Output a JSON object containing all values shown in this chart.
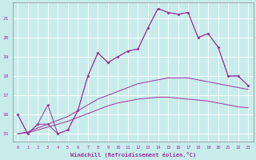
{
  "background_color": "#c8ecec",
  "line_color": "#993399",
  "xlabel": "Windchill (Refroidissement éolien,°C)",
  "xticks": [
    0,
    1,
    2,
    3,
    4,
    5,
    6,
    7,
    8,
    9,
    10,
    11,
    12,
    13,
    14,
    15,
    16,
    17,
    18,
    19,
    20,
    21,
    22,
    23
  ],
  "yticks": [
    15,
    16,
    17,
    18,
    19,
    20,
    21
  ],
  "xlim": [
    -0.5,
    23.5
  ],
  "ylim": [
    14.6,
    21.8
  ],
  "x": [
    0,
    1,
    2,
    3,
    4,
    5,
    6,
    7,
    8,
    9,
    10,
    11,
    12,
    13,
    14,
    15,
    16,
    17,
    18,
    19,
    20,
    21,
    22,
    23
  ],
  "y_spike1": [
    16.0,
    15.0,
    15.5,
    15.5,
    15.0,
    15.2,
    16.2,
    18.0,
    19.2,
    18.7,
    19.0,
    19.3,
    19.4,
    20.5,
    21.5,
    21.3,
    21.2,
    21.3,
    20.0,
    20.2,
    19.5,
    18.0,
    18.0,
    17.5
  ],
  "y_spike2": [
    16.0,
    15.0,
    15.5,
    16.5,
    15.0,
    15.2,
    16.2,
    18.0,
    19.2,
    18.7,
    19.0,
    19.3,
    19.4,
    20.5,
    21.5,
    21.3,
    21.2,
    21.3,
    20.0,
    20.2,
    19.5,
    18.0,
    18.0,
    17.5
  ],
  "y_smooth_upper": [
    15.0,
    15.1,
    15.3,
    15.5,
    15.7,
    15.9,
    16.2,
    16.5,
    16.8,
    17.0,
    17.2,
    17.4,
    17.6,
    17.7,
    17.8,
    17.9,
    17.9,
    17.9,
    17.8,
    17.7,
    17.6,
    17.5,
    17.4,
    17.3
  ],
  "y_smooth_lower": [
    15.0,
    15.05,
    15.2,
    15.35,
    15.5,
    15.65,
    15.85,
    16.05,
    16.25,
    16.45,
    16.6,
    16.7,
    16.8,
    16.85,
    16.9,
    16.9,
    16.85,
    16.8,
    16.75,
    16.7,
    16.6,
    16.5,
    16.4,
    16.35
  ]
}
